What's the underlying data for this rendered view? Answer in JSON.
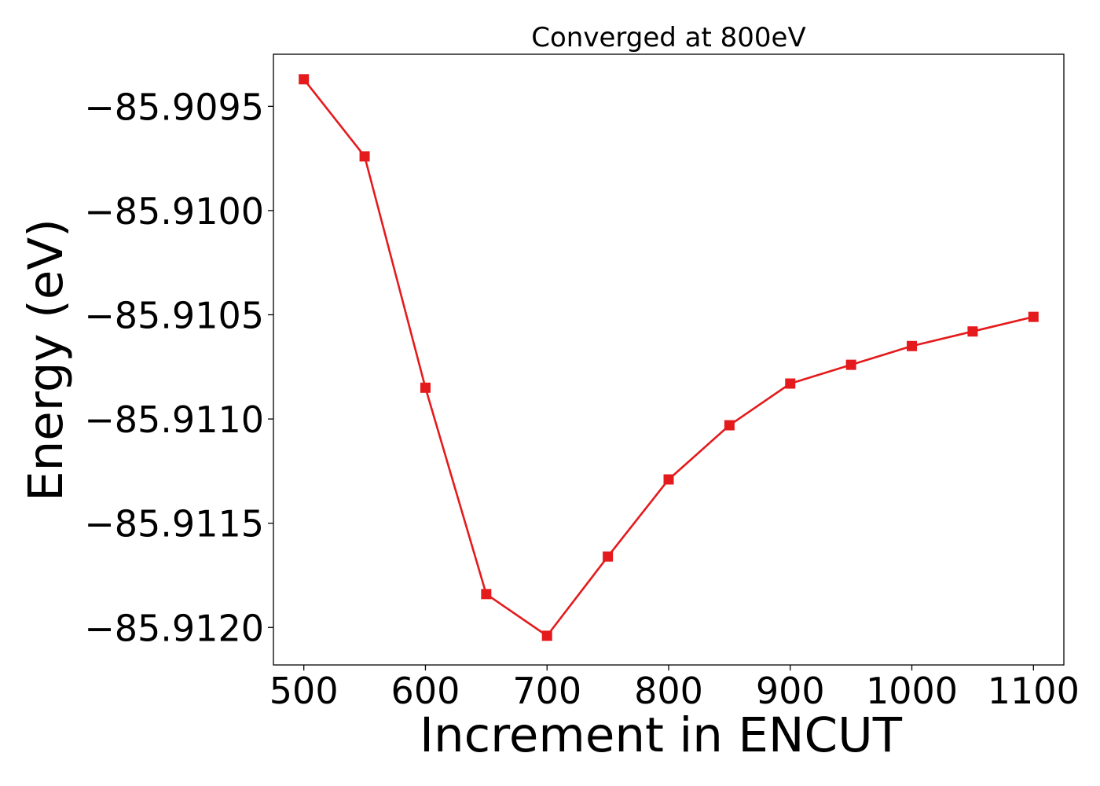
{
  "chart_data": {
    "type": "line",
    "title": "Converged at 800eV",
    "xlabel": "Increment in ENCUT",
    "ylabel": "Energy (eV)",
    "xlim": [
      475,
      1125
    ],
    "ylim": [
      -85.91218,
      -85.90925
    ],
    "x_ticks": [
      500,
      600,
      700,
      800,
      900,
      1000,
      1100
    ],
    "x_tick_labels": [
      "500",
      "600",
      "700",
      "800",
      "900",
      "1000",
      "1100"
    ],
    "y_ticks": [
      -85.9095,
      -85.91,
      -85.9105,
      -85.911,
      -85.9115,
      -85.912
    ],
    "y_tick_labels": [
      "−85.9095",
      "−85.9100",
      "−85.9105",
      "−85.9110",
      "−85.9115",
      "−85.9120"
    ],
    "grid": false,
    "legend": "none",
    "series": [
      {
        "color": "#e41a1c",
        "marker": "square",
        "x": [
          500,
          550,
          600,
          650,
          700,
          750,
          800,
          850,
          900,
          950,
          1000,
          1050,
          1100
        ],
        "y": [
          -85.90937,
          -85.90974,
          -85.91085,
          -85.91184,
          -85.91204,
          -85.91166,
          -85.91129,
          -85.91103,
          -85.91083,
          -85.91074,
          -85.91065,
          -85.91058,
          -85.91051
        ]
      }
    ]
  }
}
